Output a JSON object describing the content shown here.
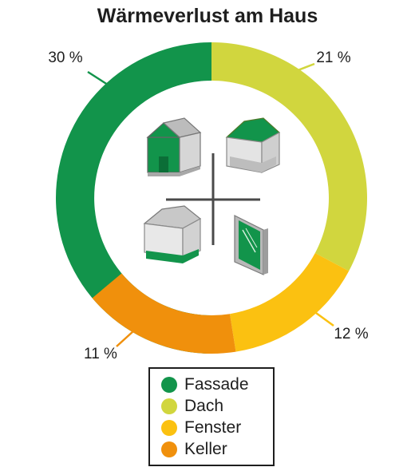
{
  "chart_data": {
    "type": "pie",
    "title": "Wärmeverlust am Haus",
    "slices": [
      {
        "name": "Fassade",
        "value": 30,
        "label": "30 %",
        "color": "#12944b"
      },
      {
        "name": "Dach",
        "value": 21,
        "label": "21 %",
        "color": "#d1d63e"
      },
      {
        "name": "Fenster",
        "value": 12,
        "label": "12 %",
        "color": "#fbc111"
      },
      {
        "name": "Keller",
        "value": 11,
        "label": "11 %",
        "color": "#f0900c"
      }
    ],
    "legend_position": "bottom-center"
  },
  "icons": [
    "house-fassade-icon",
    "house-dach-icon",
    "house-keller-icon",
    "window-icon"
  ]
}
